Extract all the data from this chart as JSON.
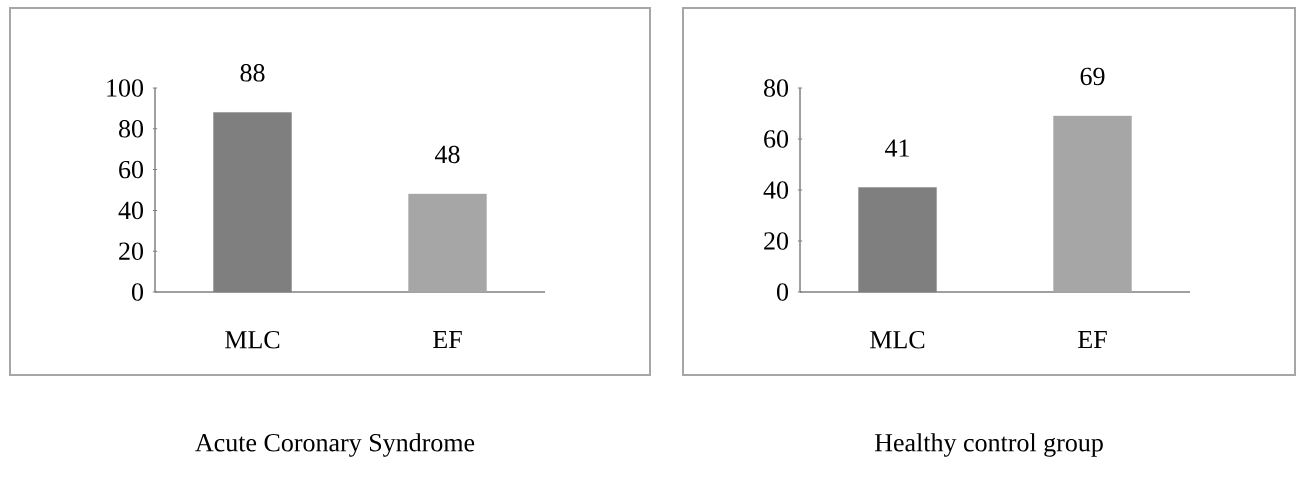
{
  "chart_data": [
    {
      "type": "bar",
      "title": "Acute Coronary Syndrome",
      "categories": [
        "MLC",
        "EF"
      ],
      "values": [
        88,
        48
      ],
      "colors": [
        "#7f7f7f",
        "#a6a6a6"
      ],
      "ylim": [
        0,
        100
      ],
      "yticks": [
        0,
        20,
        40,
        60,
        80,
        100
      ],
      "data_labels": true
    },
    {
      "type": "bar",
      "title": "Healthy control group",
      "categories": [
        "MLC",
        "EF"
      ],
      "values": [
        41,
        69
      ],
      "colors": [
        "#7f7f7f",
        "#a6a6a6"
      ],
      "ylim": [
        0,
        80
      ],
      "yticks": [
        0,
        20,
        40,
        60,
        80
      ],
      "data_labels": true
    }
  ]
}
